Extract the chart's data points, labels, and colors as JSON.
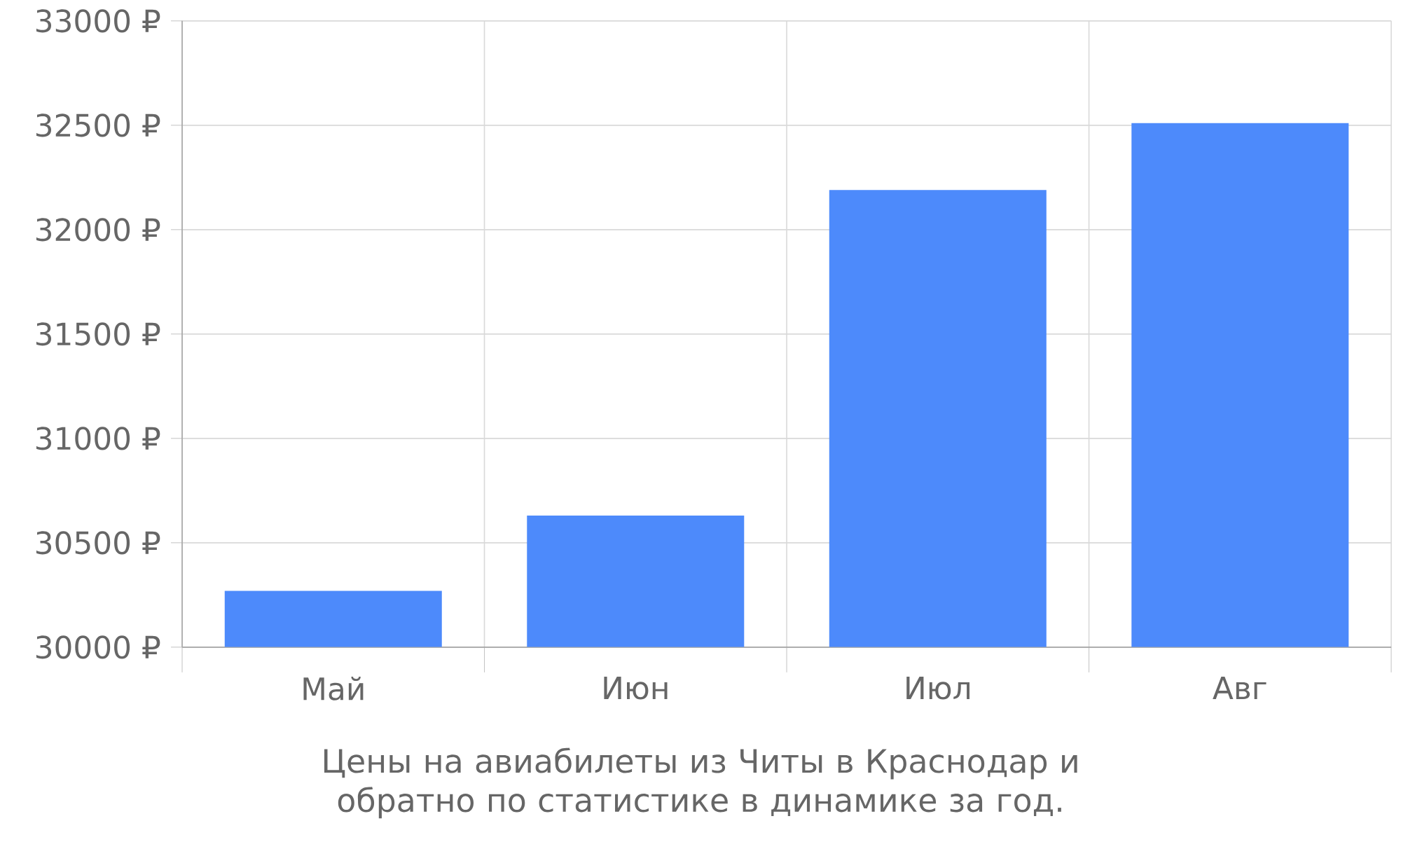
{
  "chart_data": {
    "type": "bar",
    "title": "Цены на авиабилеты из Читы в Краснодар и обратно по статистике в динамике за год.",
    "categories": [
      "Май",
      "Июн",
      "Июл",
      "Авг"
    ],
    "values": [
      30270,
      30630,
      32190,
      32510
    ],
    "color": "#4d8afb",
    "ylim": [
      30000,
      33000
    ],
    "yticks": [
      {
        "value": 30000,
        "label": "30000 ₽"
      },
      {
        "value": 30500,
        "label": "30500 ₽"
      },
      {
        "value": 31000,
        "label": "31000 ₽"
      },
      {
        "value": 31500,
        "label": "31500 ₽"
      },
      {
        "value": 32000,
        "label": "32000 ₽"
      },
      {
        "value": 32500,
        "label": "32500 ₽"
      },
      {
        "value": 33000,
        "label": "33000 ₽"
      }
    ],
    "grid": true
  }
}
